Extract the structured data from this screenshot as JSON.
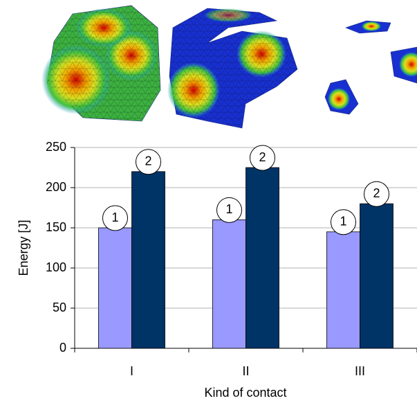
{
  "chart_data": {
    "type": "bar",
    "categories": [
      "I",
      "II",
      "III"
    ],
    "series": [
      {
        "name": "1",
        "color": "#9999ff",
        "values": [
          150,
          160,
          145
        ]
      },
      {
        "name": "2",
        "color": "#003366",
        "values": [
          220,
          225,
          180
        ]
      }
    ],
    "ylim": [
      0,
      250
    ],
    "yticks": [
      0,
      50,
      100,
      150,
      200,
      250
    ],
    "grid": true,
    "ylabel": "Energy [J]",
    "xlabel": "Kind of contact"
  }
}
